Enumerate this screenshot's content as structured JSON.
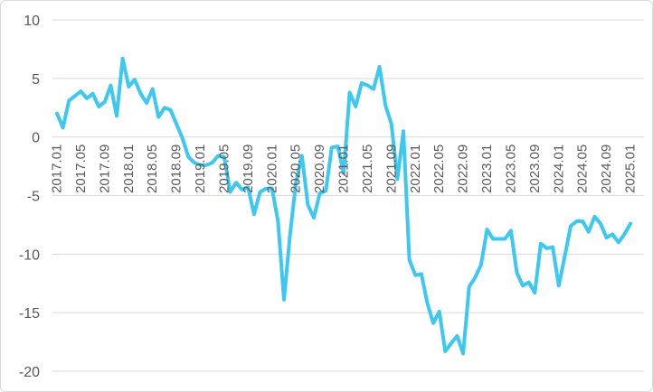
{
  "chart_data": {
    "type": "line",
    "title": "",
    "xlabel": "",
    "ylabel": "",
    "ylim": [
      -20,
      10
    ],
    "yticks": [
      10,
      5,
      0,
      -5,
      -10,
      -15,
      -20
    ],
    "grid": true,
    "legend": "none",
    "line_color": "#3cc8f0",
    "x_tick_labels": [
      "2017.01",
      "2017.05",
      "2017.09",
      "2018.01",
      "2018.05",
      "2018.09",
      "2019.01",
      "2019.05",
      "2019.09",
      "2020.01",
      "2020.05",
      "2020.09",
      "2021.01",
      "2021.05",
      "2021.09",
      "2022.01",
      "2022.05",
      "2022.09",
      "2023.01",
      "2023.05",
      "2023.09",
      "2024.01",
      "2024.05",
      "2024.09",
      "2025.01"
    ],
    "series": [
      {
        "values": [
          2.0,
          0.8,
          3.1,
          3.5,
          3.9,
          3.3,
          3.7,
          2.6,
          3.0,
          4.4,
          1.8,
          6.7,
          4.3,
          4.9,
          3.7,
          2.9,
          4.1,
          1.7,
          2.5,
          2.3,
          1.1,
          -0.1,
          -1.7,
          -2.2,
          -2.4,
          -2.4,
          -2.2,
          -1.6,
          -1.7,
          -4.7,
          -3.9,
          -4.5,
          -4.3,
          -6.6,
          -4.7,
          -4.4,
          -4.4,
          -7.2,
          -13.9,
          -8.4,
          -3.9,
          -1.6,
          -5.8,
          -6.9,
          -4.8,
          -4.6,
          -0.9,
          -0.8,
          -3.1,
          3.8,
          2.6,
          4.6,
          4.4,
          4.1,
          6.0,
          2.7,
          1.1,
          -3.6,
          0.5,
          -10.5,
          -11.8,
          -11.7,
          -14.2,
          -15.9,
          -14.9,
          -18.3,
          -17.6,
          -17.0,
          -18.5,
          -12.8,
          -12.0,
          -10.9,
          -7.9,
          -8.7,
          -8.7,
          -8.7,
          -8.0,
          -11.6,
          -12.7,
          -12.4,
          -13.3,
          -9.1,
          -9.5,
          -9.4,
          -12.7,
          -10.2,
          -7.6,
          -7.2,
          -7.2,
          -8.1,
          -6.8,
          -7.4,
          -8.6,
          -8.3,
          -9.0,
          -8.3,
          -7.4
        ]
      }
    ]
  }
}
